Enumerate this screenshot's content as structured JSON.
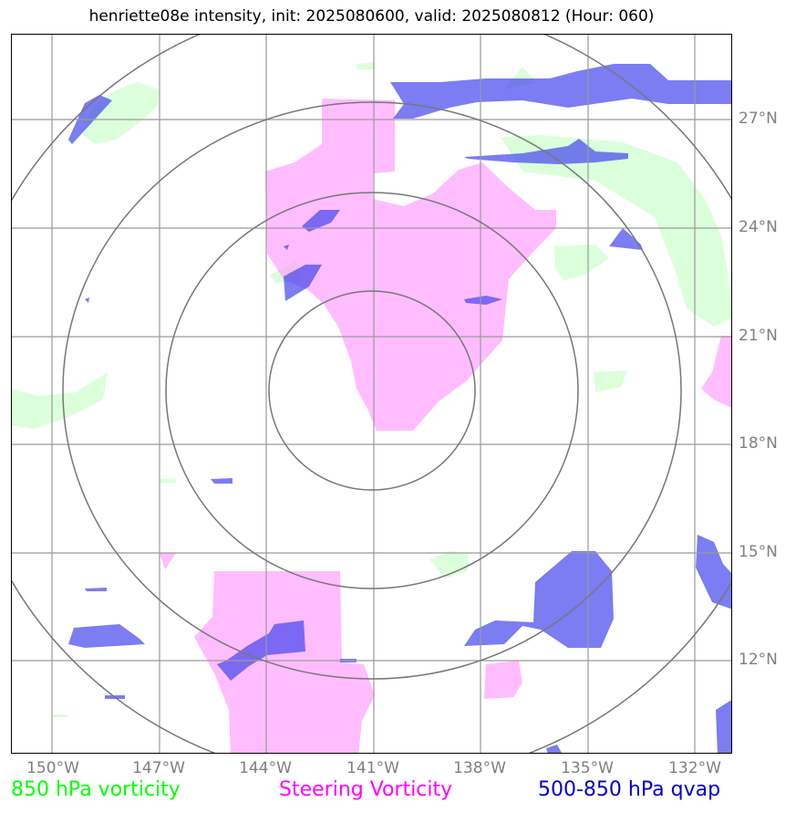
{
  "title": "henriette08e intensity, init: 2025080600, valid: 2025080812 (Hour: 060)",
  "lat_labels": [
    "27°N",
    "24°N",
    "21°N",
    "18°N",
    "15°N",
    "12°N"
  ],
  "lon_labels": [
    "150°W",
    "147°W",
    "144°W",
    "141°W",
    "138°W",
    "135°W",
    "132°W"
  ],
  "legend": {
    "left": "850 hPa vorticity",
    "center": "Steering Vorticity",
    "right": "500-850 hPa qvap"
  },
  "colors": {
    "vorticity_850": "#00ff00",
    "steering_vorticity": "#ff00ff",
    "qvap": "#0000cc",
    "grid": "#9a9a9a",
    "range_rings": "#777777"
  },
  "map_extent": {
    "lon": [
      -151.3,
      -131.3
    ],
    "lat": [
      9.5,
      29.5
    ]
  },
  "storm_center": {
    "lon": -141,
    "lat": 19.5
  }
}
